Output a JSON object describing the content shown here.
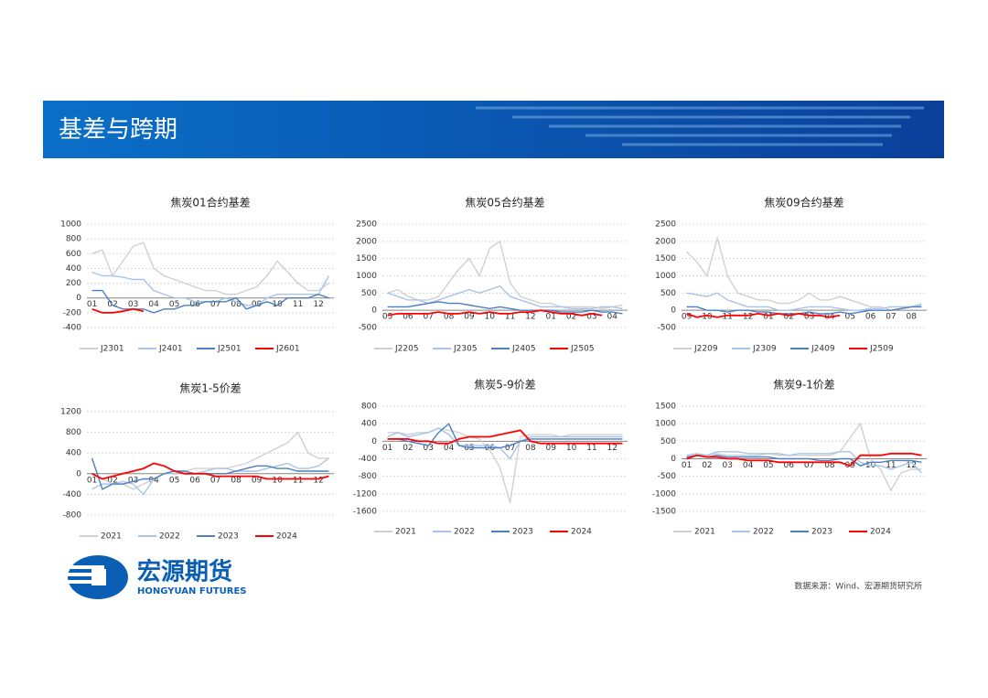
{
  "header": {
    "title": "基差与跨期"
  },
  "footer": {
    "logo_cn": "宏源期货",
    "logo_en": "HONGYUAN FUTURES",
    "source": "数据来源：Wind、宏源期货研究所"
  },
  "chart_data": [
    {
      "type": "line",
      "title": "焦炭01合约基差",
      "categories": [
        "01",
        null,
        "02",
        null,
        "03",
        null,
        "04",
        null,
        "05",
        null,
        "06",
        null,
        "07",
        null,
        "08",
        null,
        "09",
        null,
        "10",
        null,
        "11",
        null,
        "12",
        null
      ],
      "ylim": [
        -400,
        1000
      ],
      "yticks": [
        -400,
        -200,
        0,
        200,
        400,
        600,
        800,
        1000
      ],
      "grid": true,
      "series": [
        {
          "name": "J2301",
          "color": "#d0d0d0",
          "values": [
            600,
            650,
            300,
            500,
            700,
            750,
            400,
            300,
            250,
            200,
            150,
            100,
            100,
            50,
            50,
            100,
            150,
            300,
            500,
            350,
            200,
            100,
            100,
            200
          ]
        },
        {
          "name": "J2401",
          "color": "#a9c4e8",
          "values": [
            350,
            300,
            300,
            280,
            250,
            250,
            100,
            50,
            0,
            0,
            -50,
            -50,
            -50,
            0,
            -50,
            -100,
            -100,
            0,
            50,
            50,
            50,
            50,
            50,
            300
          ]
        },
        {
          "name": "J2501",
          "color": "#4a7fc1",
          "values": [
            100,
            100,
            -100,
            -150,
            -150,
            -150,
            -200,
            -150,
            -150,
            -100,
            -100,
            -50,
            -50,
            -50,
            0,
            -150,
            -100,
            -50,
            -100,
            0,
            0,
            0,
            50,
            0
          ]
        },
        {
          "name": "J2601",
          "color": "#ff0000",
          "values": [
            -150,
            -200,
            -200,
            -180,
            -150,
            -180,
            null,
            null,
            null,
            null,
            null,
            null,
            null,
            null,
            null,
            null,
            null,
            null,
            null,
            null,
            null,
            null,
            null,
            null
          ]
        }
      ]
    },
    {
      "type": "line",
      "title": "焦炭05合约基差",
      "categories": [
        "05",
        null,
        "06",
        null,
        "07",
        null,
        "08",
        null,
        "09",
        null,
        "10",
        null,
        "11",
        null,
        "12",
        null,
        "01",
        null,
        "02",
        null,
        "03",
        null,
        "04",
        null
      ],
      "ylim": [
        -500,
        2500
      ],
      "yticks": [
        -500,
        0,
        500,
        1000,
        1500,
        2000,
        2500
      ],
      "grid": true,
      "series": [
        {
          "name": "J2205",
          "color": "#d0d0d0",
          "values": [
            500,
            600,
            400,
            300,
            300,
            400,
            800,
            1200,
            1500,
            1000,
            1800,
            2000,
            800,
            400,
            300,
            200,
            200,
            100,
            100,
            100,
            100,
            50,
            100,
            150
          ]
        },
        {
          "name": "J2305",
          "color": "#a9c4e8",
          "values": [
            500,
            400,
            300,
            300,
            200,
            300,
            400,
            500,
            600,
            500,
            600,
            700,
            400,
            300,
            200,
            100,
            100,
            100,
            50,
            50,
            50,
            100,
            100,
            50
          ]
        },
        {
          "name": "J2405",
          "color": "#4a7fc1",
          "values": [
            100,
            100,
            100,
            150,
            200,
            250,
            200,
            200,
            150,
            100,
            50,
            100,
            50,
            0,
            0,
            0,
            0,
            -50,
            -50,
            -50,
            0,
            -50,
            -50,
            -100
          ]
        },
        {
          "name": "J2505",
          "color": "#ff0000",
          "values": [
            -150,
            -100,
            -100,
            -100,
            -100,
            -50,
            -100,
            -100,
            -50,
            -100,
            -50,
            -100,
            -100,
            -50,
            -50,
            0,
            -50,
            -100,
            -100,
            -150,
            -100,
            -150,
            null,
            null
          ]
        }
      ]
    },
    {
      "type": "line",
      "title": "焦炭09合约基差",
      "categories": [
        "09",
        null,
        "10",
        null,
        "11",
        null,
        "12",
        null,
        "01",
        null,
        "02",
        null,
        "03",
        null,
        "04",
        null,
        "05",
        null,
        "06",
        null,
        "07",
        null,
        "08",
        null
      ],
      "ylim": [
        -500,
        2500
      ],
      "yticks": [
        -500,
        0,
        500,
        1000,
        1500,
        2000,
        2500
      ],
      "grid": true,
      "series": [
        {
          "name": "J2209",
          "color": "#d0d0d0",
          "values": [
            1700,
            1400,
            1000,
            2100,
            1000,
            500,
            400,
            300,
            300,
            200,
            200,
            300,
            500,
            300,
            300,
            400,
            300,
            200,
            100,
            100,
            0,
            50,
            100,
            200
          ]
        },
        {
          "name": "J2309",
          "color": "#a9c4e8",
          "values": [
            500,
            450,
            400,
            500,
            300,
            200,
            100,
            100,
            100,
            0,
            0,
            50,
            100,
            100,
            100,
            50,
            0,
            0,
            50,
            50,
            100,
            100,
            100,
            150
          ]
        },
        {
          "name": "J2409",
          "color": "#4a7fc1",
          "values": [
            100,
            100,
            0,
            0,
            -50,
            0,
            0,
            -50,
            -50,
            -100,
            -100,
            -100,
            -50,
            -100,
            -100,
            -50,
            -100,
            -50,
            0,
            0,
            0,
            50,
            100,
            100
          ]
        },
        {
          "name": "J2509",
          "color": "#ff0000",
          "values": [
            -100,
            -200,
            -150,
            -200,
            -150,
            -150,
            -150,
            -100,
            -150,
            -100,
            -150,
            -100,
            -150,
            -150,
            -200,
            -150,
            null,
            null,
            null,
            null,
            null,
            null,
            null,
            null
          ]
        }
      ]
    },
    {
      "type": "line",
      "title": "焦炭1-5价差",
      "categories": [
        "01",
        null,
        "02",
        null,
        "03",
        null,
        "04",
        null,
        "05",
        null,
        "06",
        null,
        "07",
        null,
        "08",
        null,
        "09",
        null,
        "10",
        null,
        "11",
        null,
        "12",
        null
      ],
      "ylim": [
        -800,
        1200
      ],
      "yticks": [
        -800,
        -400,
        0,
        400,
        800,
        1200
      ],
      "grid": true,
      "series": [
        {
          "name": "2021",
          "color": "#d0d0d0",
          "values": [
            0,
            -100,
            -200,
            -200,
            -300,
            -200,
            -100,
            0,
            50,
            50,
            100,
            100,
            100,
            100,
            150,
            200,
            300,
            400,
            500,
            600,
            800,
            400,
            300,
            300
          ]
        },
        {
          "name": "2022",
          "color": "#a9c4e8",
          "values": [
            -300,
            -200,
            -200,
            -150,
            -200,
            -400,
            -100,
            0,
            0,
            0,
            0,
            50,
            100,
            100,
            50,
            50,
            50,
            100,
            150,
            200,
            100,
            100,
            150,
            300
          ]
        },
        {
          "name": "2023",
          "color": "#4a7fc1",
          "values": [
            300,
            -300,
            -200,
            -200,
            -150,
            -100,
            -100,
            0,
            50,
            50,
            0,
            0,
            0,
            0,
            50,
            100,
            150,
            150,
            100,
            100,
            50,
            50,
            50,
            50
          ]
        },
        {
          "name": "2024",
          "color": "#ff0000",
          "values": [
            0,
            -100,
            -50,
            0,
            50,
            100,
            200,
            150,
            50,
            0,
            0,
            0,
            -50,
            -50,
            -50,
            -50,
            -50,
            -100,
            -100,
            -100,
            -100,
            -100,
            -100,
            -50
          ]
        }
      ]
    },
    {
      "type": "line",
      "title": "焦炭5-9价差",
      "categories": [
        "01",
        null,
        "02",
        null,
        "03",
        null,
        "04",
        null,
        "05",
        null,
        "06",
        null,
        "07",
        null,
        "08",
        null,
        "09",
        null,
        "10",
        null,
        "11",
        null,
        "12",
        null
      ],
      "ylim": [
        -1600,
        800
      ],
      "yticks": [
        -1600,
        -1200,
        -800,
        -400,
        0,
        400,
        800
      ],
      "grid": true,
      "series": [
        {
          "name": "2021",
          "color": "#d0d0d0",
          "values": [
            200,
            200,
            150,
            200,
            200,
            300,
            250,
            200,
            100,
            50,
            -200,
            -600,
            -1400,
            100,
            150,
            150,
            150,
            100,
            150,
            150,
            150,
            150,
            150,
            150
          ]
        },
        {
          "name": "2022",
          "color": "#a9c4e8",
          "values": [
            100,
            200,
            100,
            150,
            200,
            300,
            150,
            -100,
            -100,
            -100,
            -100,
            -150,
            -400,
            0,
            100,
            100,
            100,
            100,
            100,
            100,
            100,
            100,
            100,
            100
          ]
        },
        {
          "name": "2023",
          "color": "#4a7fc1",
          "values": [
            50,
            50,
            0,
            -50,
            -100,
            200,
            400,
            -100,
            -150,
            -150,
            -150,
            -150,
            -100,
            0,
            50,
            50,
            50,
            50,
            50,
            50,
            50,
            50,
            50,
            50
          ]
        },
        {
          "name": "2024",
          "color": "#ff0000",
          "values": [
            50,
            50,
            50,
            0,
            0,
            -50,
            -50,
            50,
            100,
            100,
            100,
            150,
            200,
            250,
            0,
            -50,
            -50,
            -50,
            -50,
            -50,
            -50,
            -50,
            -50,
            -50
          ]
        }
      ]
    },
    {
      "type": "line",
      "title": "焦炭9-1价差",
      "categories": [
        "01",
        null,
        "02",
        null,
        "03",
        null,
        "04",
        null,
        "05",
        null,
        "06",
        null,
        "07",
        null,
        "08",
        null,
        "09",
        null,
        "10",
        null,
        "11",
        null,
        "12",
        null
      ],
      "ylim": [
        -1500,
        1500
      ],
      "yticks": [
        -1500,
        -1000,
        -500,
        0,
        500,
        1000,
        1500
      ],
      "grid": true,
      "series": [
        {
          "name": "2021",
          "color": "#d0d0d0",
          "values": [
            50,
            100,
            100,
            150,
            100,
            100,
            100,
            100,
            150,
            100,
            100,
            100,
            100,
            100,
            100,
            200,
            600,
            1000,
            0,
            -300,
            -900,
            -400,
            -300,
            -300
          ]
        },
        {
          "name": "2022",
          "color": "#a9c4e8",
          "values": [
            100,
            150,
            100,
            200,
            200,
            200,
            150,
            150,
            150,
            150,
            100,
            150,
            150,
            150,
            150,
            200,
            200,
            -100,
            -200,
            -200,
            -300,
            -200,
            -100,
            -400
          ]
        },
        {
          "name": "2023",
          "color": "#4a7fc1",
          "values": [
            50,
            100,
            50,
            100,
            50,
            50,
            50,
            50,
            50,
            0,
            0,
            0,
            0,
            -50,
            -50,
            0,
            0,
            -200,
            -100,
            -100,
            -50,
            -50,
            -50,
            -100
          ]
        },
        {
          "name": "2024",
          "color": "#ff0000",
          "values": [
            0,
            100,
            50,
            50,
            0,
            0,
            -50,
            -50,
            -50,
            -100,
            -100,
            -100,
            -100,
            -100,
            -100,
            -100,
            -200,
            100,
            100,
            100,
            150,
            150,
            150,
            100
          ]
        }
      ]
    }
  ]
}
